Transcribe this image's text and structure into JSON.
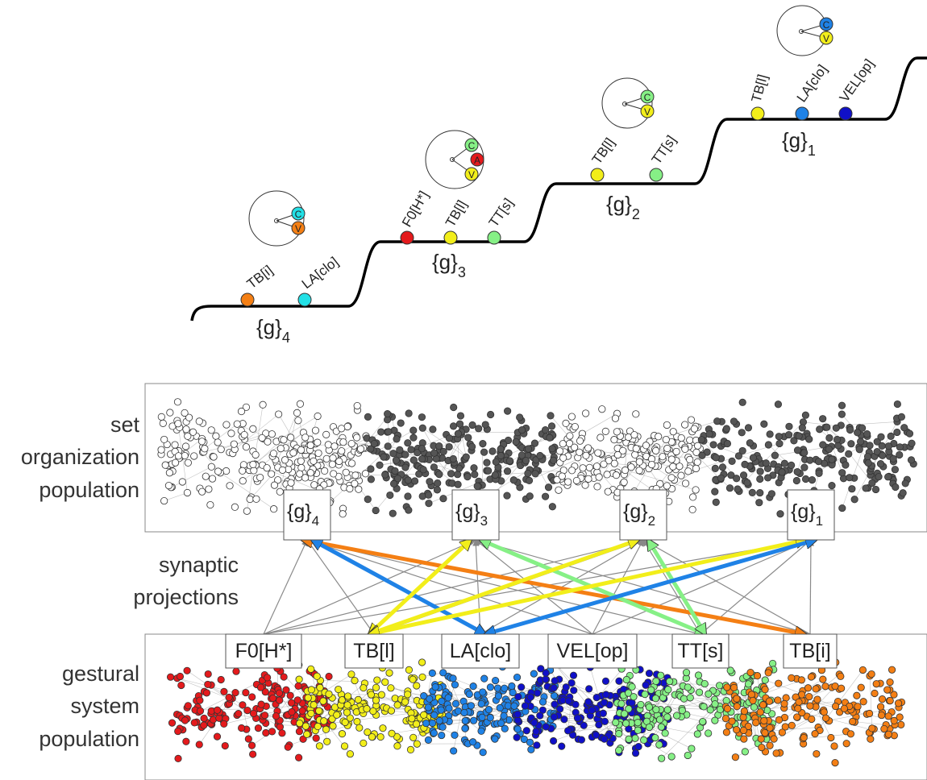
{
  "colors": {
    "F0_H": "#e41a1c",
    "TB_I": "#f2ee1a",
    "LA_clo": "#1f82e6",
    "VEL_op": "#1010c8",
    "TT_s": "#86f086",
    "TB_i": "#f47f14",
    "TB_l_top": "#f2ee1a",
    "C4": "#22e0e6",
    "dark_node": "#555555",
    "light_node": "#ffffff",
    "edge": "#9a9a9a"
  },
  "top_diagram": {
    "sets": [
      {
        "label": "{g}",
        "subscript": "4",
        "gestures": [
          {
            "label": "TB[i]",
            "color": "#f47f14"
          },
          {
            "label": "LA[clo]",
            "color": "#22e0e6"
          }
        ],
        "icon": [
          {
            "letter": "C",
            "color": "#22e0e6"
          },
          {
            "letter": "V",
            "color": "#f47f14"
          }
        ]
      },
      {
        "label": "{g}",
        "subscript": "3",
        "gestures": [
          {
            "label": "F0[H*]",
            "color": "#e41a1c"
          },
          {
            "label": "TB[l]",
            "color": "#f2ee1a"
          },
          {
            "label": "TT[s]",
            "color": "#86f086"
          }
        ],
        "icon": [
          {
            "letter": "C",
            "color": "#86f086"
          },
          {
            "letter": "A",
            "color": "#e41a1c"
          },
          {
            "letter": "V",
            "color": "#f2ee1a"
          }
        ]
      },
      {
        "label": "{g}",
        "subscript": "2",
        "gestures": [
          {
            "label": "TB[l]",
            "color": "#f2ee1a"
          },
          {
            "label": "TT[s]",
            "color": "#86f086"
          }
        ],
        "icon": [
          {
            "letter": "C",
            "color": "#86f086"
          },
          {
            "letter": "V",
            "color": "#f2ee1a"
          }
        ]
      },
      {
        "label": "{g}",
        "subscript": "1",
        "gestures": [
          {
            "label": "TB[l]",
            "color": "#f2ee1a"
          },
          {
            "label": "LA[clo]",
            "color": "#1f82e6"
          },
          {
            "label": "VEL[op]",
            "color": "#1010c8"
          }
        ],
        "icon": [
          {
            "letter": "C",
            "color": "#1f82e6"
          },
          {
            "letter": "V",
            "color": "#f2ee1a"
          }
        ]
      }
    ]
  },
  "side_labels": {
    "set_pop": [
      "set",
      "organization",
      "population"
    ],
    "synaptic": [
      "synaptic",
      "projections"
    ],
    "gestural": [
      "gestural",
      "system",
      "population"
    ]
  },
  "set_boxes": [
    {
      "label": "{g}",
      "subscript": "4"
    },
    {
      "label": "{g}",
      "subscript": "3"
    },
    {
      "label": "{g}",
      "subscript": "2"
    },
    {
      "label": "{g}",
      "subscript": "1"
    }
  ],
  "gesture_boxes": [
    {
      "label": "F0[H*]"
    },
    {
      "label": "TB[l]"
    },
    {
      "label": "LA[clo]"
    },
    {
      "label": "VEL[op]"
    },
    {
      "label": "TT[s]"
    },
    {
      "label": "TB[i]"
    }
  ],
  "projections": [
    {
      "from_gesture": 5,
      "to_set": 0,
      "color": "#f47f14"
    },
    {
      "from_gesture": 2,
      "to_set": 0,
      "color": "#1f82e6"
    },
    {
      "from_gesture": 1,
      "to_set": 1,
      "color": "#f2ee1a"
    },
    {
      "from_gesture": 4,
      "to_set": 1,
      "color": "#86f086"
    },
    {
      "from_gesture": 1,
      "to_set": 2,
      "color": "#f2ee1a"
    },
    {
      "from_gesture": 4,
      "to_set": 2,
      "color": "#86f086"
    },
    {
      "from_gesture": 1,
      "to_set": 3,
      "color": "#f2ee1a"
    },
    {
      "from_gesture": 2,
      "to_set": 3,
      "color": "#1f82e6"
    }
  ]
}
